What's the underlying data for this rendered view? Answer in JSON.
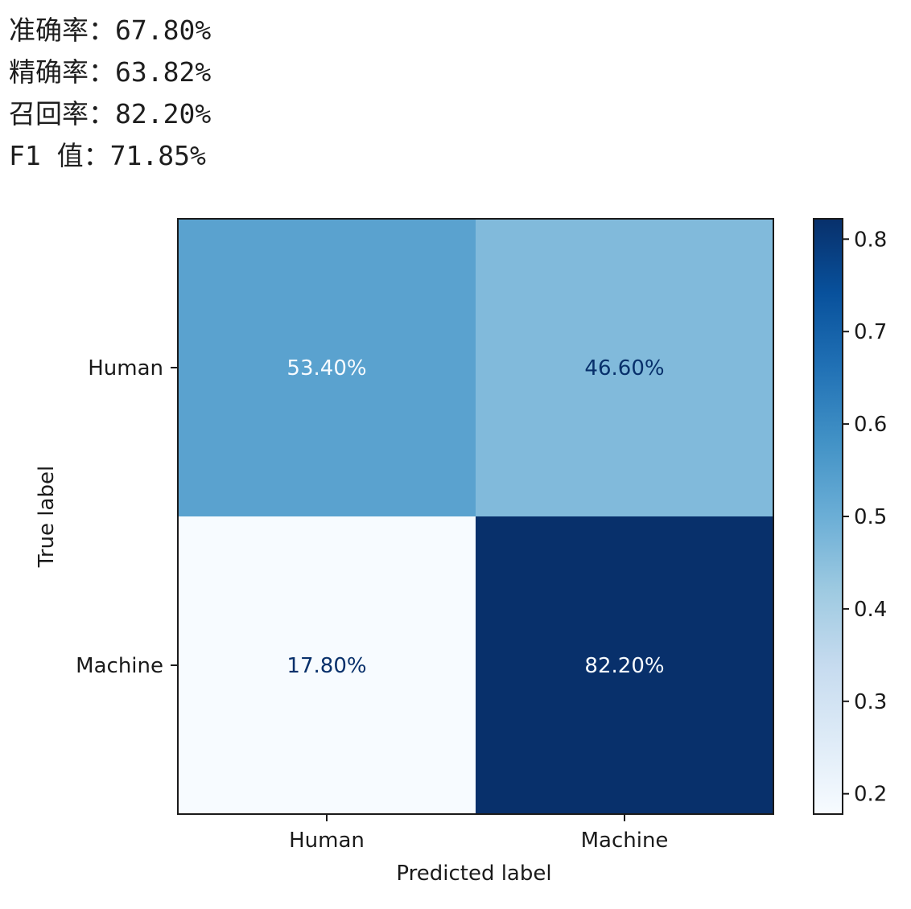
{
  "metrics": [
    {
      "label": "准确率",
      "separator": "：",
      "value": "67.80%"
    },
    {
      "label": "精确率",
      "separator": "：",
      "value": "63.82%"
    },
    {
      "label": "召回率",
      "separator": "：",
      "value": "82.20%"
    },
    {
      "label": "F1 值",
      "separator": "：",
      "value": "71.85%"
    }
  ],
  "chart_data": {
    "type": "heatmap",
    "rows": [
      "Human",
      "Machine"
    ],
    "columns": [
      "Human",
      "Machine"
    ],
    "values": [
      [
        0.534,
        0.466
      ],
      [
        0.178,
        0.822
      ]
    ],
    "cell_labels": [
      [
        "53.40%",
        "46.60%"
      ],
      [
        "17.80%",
        "82.20%"
      ]
    ],
    "xlabel": "Predicted label",
    "ylabel": "True label",
    "colormap": "Blues",
    "colorbar": {
      "range": [
        0.178,
        0.822
      ],
      "ticks": [
        0.2,
        0.3,
        0.4,
        0.5,
        0.6,
        0.7,
        0.8
      ],
      "tick_labels": [
        "0.2",
        "0.3",
        "0.4",
        "0.5",
        "0.6",
        "0.7",
        "0.8"
      ]
    },
    "grid": false
  }
}
